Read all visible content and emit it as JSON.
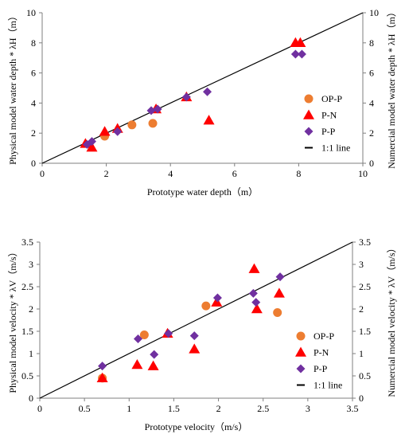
{
  "colors": {
    "op_p": "#ED7D31",
    "p_n": "#FF0000",
    "p_p": "#7030A0",
    "line": "#000000",
    "axis": "#7f7f7f"
  },
  "chart_data": [
    {
      "type": "scatter",
      "xlabel": "Prototype  water depth（m）",
      "ylabel_left": "Physical model  water depth * λH（m）",
      "ylabel_right": "Numercial model  water depth * λH（m）",
      "xlim": [
        0,
        10
      ],
      "ylim": [
        0,
        10
      ],
      "x_ticks": [
        "0",
        "2",
        "4",
        "6",
        "8",
        "10"
      ],
      "y_ticks": [
        "0",
        "2",
        "4",
        "6",
        "8",
        "10"
      ],
      "grid": false,
      "legend_position": "right",
      "series": [
        {
          "name": "OP-P",
          "marker": "circle",
          "color_key": "op_p",
          "points": [
            [
              1.95,
              1.8
            ],
            [
              2.8,
              2.55
            ],
            [
              3.45,
              2.65
            ]
          ]
        },
        {
          "name": "P-N",
          "marker": "triangle",
          "color_key": "p_n",
          "points": [
            [
              1.35,
              1.3
            ],
            [
              1.55,
              1.05
            ],
            [
              1.95,
              2.1
            ],
            [
              2.35,
              2.3
            ],
            [
              3.55,
              3.6
            ],
            [
              4.5,
              4.4
            ],
            [
              5.2,
              2.85
            ],
            [
              7.9,
              8.0
            ],
            [
              8.05,
              8.0
            ]
          ]
        },
        {
          "name": "P-P",
          "marker": "diamond",
          "color_key": "p_p",
          "points": [
            [
              1.4,
              1.25
            ],
            [
              1.55,
              1.45
            ],
            [
              2.35,
              2.1
            ],
            [
              3.4,
              3.5
            ],
            [
              3.6,
              3.6
            ],
            [
              4.5,
              4.4
            ],
            [
              5.15,
              4.75
            ],
            [
              7.9,
              7.25
            ],
            [
              8.1,
              7.25
            ]
          ]
        }
      ],
      "reference_line": {
        "label": "1:1 line",
        "from": [
          0,
          0
        ],
        "to": [
          10,
          10
        ]
      }
    },
    {
      "type": "scatter",
      "xlabel": "Prototype  velocity（m/s）",
      "ylabel_left": "Physical model  velocity * λV（m/s）",
      "ylabel_right": "Numercial model  velocity * λV（m/s）",
      "xlim": [
        0,
        3.5
      ],
      "ylim": [
        0,
        3.5
      ],
      "x_ticks": [
        "0",
        "0.5",
        "1",
        "1.5",
        "2",
        "2.5",
        "3",
        "3.5"
      ],
      "y_ticks": [
        "0",
        "0.5",
        "1",
        "1.5",
        "2",
        "2.5",
        "3",
        "3.5"
      ],
      "grid": false,
      "legend_position": "right",
      "series": [
        {
          "name": "OP-P",
          "marker": "circle",
          "color_key": "op_p",
          "points": [
            [
              0.7,
              0.45
            ],
            [
              1.17,
              1.42
            ],
            [
              1.86,
              2.07
            ],
            [
              2.66,
              1.92
            ]
          ]
        },
        {
          "name": "P-N",
          "marker": "triangle",
          "color_key": "p_n",
          "points": [
            [
              0.7,
              0.45
            ],
            [
              1.09,
              0.75
            ],
            [
              1.27,
              0.72
            ],
            [
              1.43,
              1.45
            ],
            [
              1.73,
              1.1
            ],
            [
              1.98,
              2.15
            ],
            [
              2.4,
              2.9
            ],
            [
              2.43,
              2.0
            ],
            [
              2.68,
              2.35
            ]
          ]
        },
        {
          "name": "P-P",
          "marker": "diamond",
          "color_key": "p_p",
          "points": [
            [
              0.7,
              0.72
            ],
            [
              1.1,
              1.33
            ],
            [
              1.28,
              0.98
            ],
            [
              1.44,
              1.45
            ],
            [
              1.73,
              1.4
            ],
            [
              1.99,
              2.25
            ],
            [
              2.39,
              2.35
            ],
            [
              2.42,
              2.15
            ],
            [
              2.69,
              2.72
            ]
          ]
        }
      ],
      "reference_line": {
        "label": "1:1 line",
        "from": [
          0,
          0
        ],
        "to": [
          3.5,
          3.5
        ]
      }
    }
  ]
}
